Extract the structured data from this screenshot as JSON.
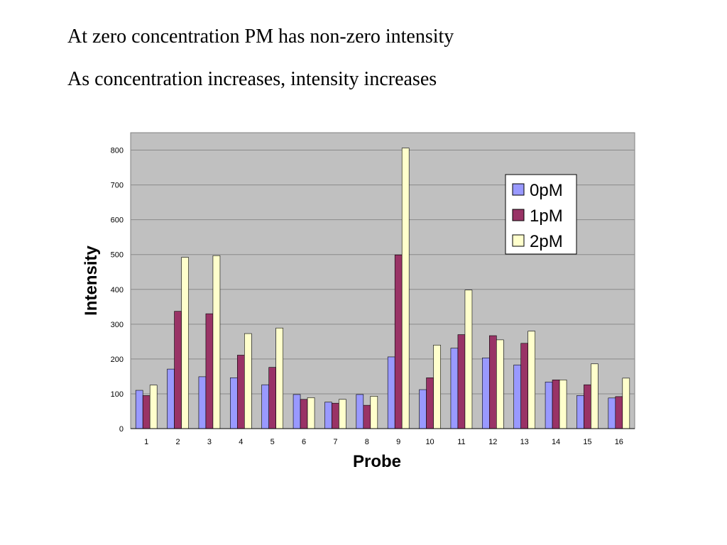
{
  "slide": {
    "line1": "At zero concentration PM has non-zero intensity",
    "line2": "As concentration increases, intensity increases"
  },
  "colors": {
    "plot_bg": "#c0c0c0",
    "grid": "#8a8a8a",
    "series": [
      "#9999ff",
      "#993366",
      "#ffffcc"
    ]
  },
  "chart_data": {
    "type": "bar",
    "xlabel": "Probe",
    "ylabel": "Intensity",
    "ylim": [
      0,
      850
    ],
    "yticks": [
      0,
      100,
      200,
      300,
      400,
      500,
      600,
      700,
      800
    ],
    "grid": true,
    "legend_position": "top-right",
    "categories": [
      "1",
      "2",
      "3",
      "4",
      "5",
      "6",
      "7",
      "8",
      "9",
      "10",
      "11",
      "12",
      "13",
      "14",
      "15",
      "16"
    ],
    "series": [
      {
        "name": "0pM",
        "values": [
          110,
          171,
          149,
          146,
          126,
          98,
          76,
          98,
          206,
          112,
          231,
          203,
          183,
          134,
          95,
          88
        ]
      },
      {
        "name": "1pM",
        "values": [
          95,
          337,
          330,
          211,
          176,
          84,
          73,
          67,
          499,
          146,
          270,
          267,
          245,
          140,
          126,
          92
        ]
      },
      {
        "name": "2pM",
        "values": [
          125,
          492,
          497,
          273,
          289,
          89,
          84,
          93,
          806,
          240,
          398,
          255,
          280,
          140,
          186,
          145
        ]
      }
    ]
  }
}
